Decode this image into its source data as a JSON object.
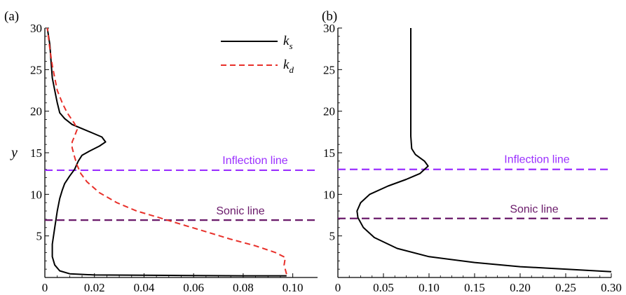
{
  "chart_data": [
    {
      "panel": "(a)",
      "type": "line",
      "ylabel": "y",
      "xlim": [
        0,
        0.11
      ],
      "ylim": [
        0,
        30
      ],
      "xticks": [
        "0",
        "0.02",
        "0.04",
        "0.06",
        "0.08",
        "0.10"
      ],
      "xtick_values": [
        0,
        0.02,
        0.04,
        0.06,
        0.08,
        0.1
      ],
      "yticks": [
        "5",
        "10",
        "15",
        "20",
        "25",
        "30"
      ],
      "ytick_values": [
        5,
        10,
        15,
        20,
        25,
        30
      ],
      "legend_position": "top-right",
      "series": [
        {
          "name": "k_s",
          "label_main": "k",
          "label_sub": "s",
          "color": "#000000",
          "style": "solid",
          "points": [
            [
              0.0975,
              0.2
            ],
            [
              0.08,
              0.2
            ],
            [
              0.05,
              0.25
            ],
            [
              0.02,
              0.3
            ],
            [
              0.01,
              0.45
            ],
            [
              0.006,
              0.8
            ],
            [
              0.004,
              1.5
            ],
            [
              0.003,
              2.5
            ],
            [
              0.003,
              4
            ],
            [
              0.004,
              6
            ],
            [
              0.005,
              8
            ],
            [
              0.006,
              9.5
            ],
            [
              0.007,
              10.5
            ],
            [
              0.008,
              11.3
            ],
            [
              0.01,
              12.2
            ],
            [
              0.012,
              13
            ],
            [
              0.0135,
              14
            ],
            [
              0.015,
              14.7
            ],
            [
              0.018,
              15.2
            ],
            [
              0.022,
              15.8
            ],
            [
              0.0245,
              16.3
            ],
            [
              0.023,
              16.9
            ],
            [
              0.019,
              17.4
            ],
            [
              0.015,
              17.9
            ],
            [
              0.011,
              18.4
            ],
            [
              0.008,
              19.1
            ],
            [
              0.006,
              19.8
            ],
            [
              0.005,
              21
            ],
            [
              0.004,
              22.5
            ],
            [
              0.003,
              24
            ],
            [
              0.0025,
              26
            ],
            [
              0.002,
              28
            ],
            [
              0.001,
              30
            ]
          ]
        },
        {
          "name": "k_d",
          "label_main": "k",
          "label_sub": "d",
          "color": "#e8302a",
          "style": "dashed",
          "points": [
            [
              0.0975,
              0.4
            ],
            [
              0.0965,
              1.5
            ],
            [
              0.097,
              2.4
            ],
            [
              0.093,
              3
            ],
            [
              0.085,
              3.8
            ],
            [
              0.075,
              4.6
            ],
            [
              0.065,
              5.5
            ],
            [
              0.055,
              6.4
            ],
            [
              0.045,
              7.3
            ],
            [
              0.037,
              8
            ],
            [
              0.029,
              9
            ],
            [
              0.022,
              10.2
            ],
            [
              0.017,
              11.5
            ],
            [
              0.0145,
              12.5
            ],
            [
              0.013,
              13.5
            ],
            [
              0.012,
              14.5
            ],
            [
              0.011,
              15.6
            ],
            [
              0.011,
              16.3
            ],
            [
              0.012,
              17
            ],
            [
              0.013,
              17.8
            ],
            [
              0.012,
              18.5
            ],
            [
              0.009,
              19.8
            ],
            [
              0.007,
              21
            ],
            [
              0.005,
              22.5
            ],
            [
              0.004,
              24
            ],
            [
              0.003,
              25.5
            ],
            [
              0.002,
              27.5
            ],
            [
              0.001,
              30
            ]
          ]
        }
      ],
      "annotations": [
        {
          "text": "Inflection line",
          "y": 12.9,
          "color": "#9b30ff"
        },
        {
          "text": "Sonic line",
          "y": 6.9,
          "color": "#6a1a6a"
        }
      ]
    },
    {
      "panel": "(b)",
      "type": "line",
      "ylabel": "",
      "xlim": [
        0,
        0.3
      ],
      "ylim": [
        0,
        30
      ],
      "xticks": [
        "0",
        "0.05",
        "0.10",
        "0.15",
        "0.20",
        "0.25",
        "0.30"
      ],
      "xtick_values": [
        0,
        0.05,
        0.1,
        0.15,
        0.2,
        0.25,
        0.3
      ],
      "yticks": [
        "5",
        "10",
        "15",
        "20",
        "25",
        "30"
      ],
      "ytick_values": [
        5,
        10,
        15,
        20,
        25,
        30
      ],
      "series": [
        {
          "name": "",
          "color": "#000000",
          "style": "solid",
          "points": [
            [
              0.3,
              0.7
            ],
            [
              0.25,
              1
            ],
            [
              0.2,
              1.3
            ],
            [
              0.15,
              1.8
            ],
            [
              0.1,
              2.5
            ],
            [
              0.065,
              3.5
            ],
            [
              0.04,
              4.8
            ],
            [
              0.028,
              6
            ],
            [
              0.022,
              7.2
            ],
            [
              0.021,
              8
            ],
            [
              0.025,
              9
            ],
            [
              0.035,
              10
            ],
            [
              0.055,
              11
            ],
            [
              0.075,
              11.8
            ],
            [
              0.09,
              12.5
            ],
            [
              0.099,
              13.4
            ],
            [
              0.095,
              14
            ],
            [
              0.085,
              14.8
            ],
            [
              0.081,
              15.5
            ],
            [
              0.08,
              17
            ],
            [
              0.08,
              20
            ],
            [
              0.08,
              25
            ],
            [
              0.08,
              30
            ]
          ]
        }
      ],
      "annotations": [
        {
          "text": "Inflection line",
          "y": 13.0,
          "color": "#9b30ff"
        },
        {
          "text": "Sonic line",
          "y": 7.1,
          "color": "#6a1a6a"
        }
      ]
    }
  ]
}
